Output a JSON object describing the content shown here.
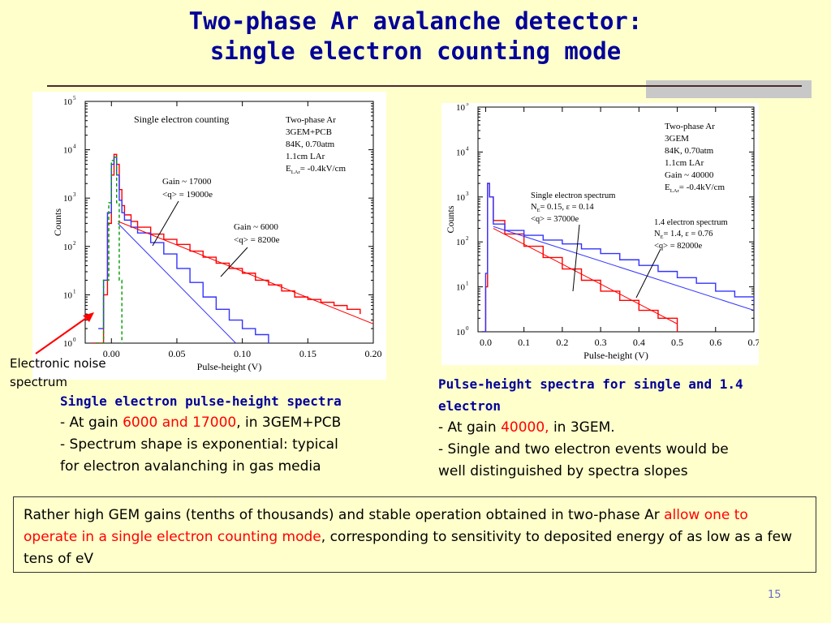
{
  "title": {
    "line1": "Two-phase Ar avalanche detector:",
    "line2": "single electron counting mode"
  },
  "noise_label": {
    "line1": "Electronic noise",
    "line2": "spectrum"
  },
  "caption_left": {
    "heading": "Single electron pulse-height spectra",
    "l1_pre": "- At gain ",
    "l1_red": "6000 and 17000",
    "l1_post": ", in 3GEM+PCB",
    "l2": "- Spectrum shape is exponential: typical",
    "l3": "for electron avalanching in gas media"
  },
  "caption_right": {
    "heading1": "Pulse-height spectra for single and 1.4",
    "heading2": "electron",
    "l1_pre": "- At gain ",
    "l1_red": "40000,",
    "l1_post": " in 3GEM.",
    "l2": "- Single and two electron events would be",
    "l3": "well distinguished by spectra slopes"
  },
  "summary": {
    "pre": "Rather high GEM gains (tenths of thousands) and stable operation obtained in two-phase Ar ",
    "red": "allow one to operate in a single electron counting mode",
    "post": ", corresponding to sensitivity to deposited energy of as low as a few tens of eV"
  },
  "page_number": "15",
  "colors": {
    "title": "#000099",
    "highlight": "#ff0000",
    "series_blue": "#3333ff",
    "series_red": "#ff0000",
    "noise": "#009900"
  },
  "chart_data": [
    {
      "type": "line",
      "y_scale": "log",
      "xlim": [
        -0.02,
        0.2
      ],
      "ylim": [
        1,
        100000
      ],
      "xlabel": "Pulse-height (V)",
      "ylabel": "Counts",
      "x_ticks": [
        "0.00",
        "0.05",
        "0.10",
        "0.15",
        "0.20"
      ],
      "x_tick_values": [
        0.0,
        0.05,
        0.1,
        0.15,
        0.2
      ],
      "y_ticks": [
        "10",
        "10",
        "10",
        "10",
        "10",
        "10"
      ],
      "y_tick_exponents": [
        "0",
        "1",
        "2",
        "3",
        "4",
        "5"
      ],
      "inner_title": "Single electron counting",
      "legend_text": [
        "Two-phase Ar",
        "3GEM+PCB",
        "84K, 0.70atm",
        "1.1cm LAr"
      ],
      "legend_field_pre": "E",
      "legend_field_sub": "LAr",
      "legend_field_post": "= -0.4kV/cm",
      "annotations": [
        {
          "line1": "Gain ~ 17000",
          "line2": "<q> = 19000e"
        },
        {
          "line1": "Gain ~ 6000",
          "line2": "<q> = 8200e"
        }
      ],
      "series": [
        {
          "color": "red",
          "x": [
            -0.015,
            -0.01,
            -0.006,
            -0.003,
            0.0,
            0.002,
            0.004,
            0.006,
            0.008,
            0.01,
            0.015,
            0.02,
            0.03,
            0.04,
            0.05,
            0.06,
            0.07,
            0.08,
            0.09,
            0.1,
            0.11,
            0.12,
            0.13,
            0.14,
            0.15,
            0.16,
            0.17,
            0.18,
            0.19
          ],
          "y": [
            0,
            1,
            10,
            300,
            3000,
            8000,
            5000,
            1500,
            700,
            450,
            330,
            250,
            180,
            140,
            110,
            80,
            60,
            45,
            35,
            28,
            20,
            16,
            12,
            9,
            8,
            7,
            6,
            5,
            4
          ]
        },
        {
          "color": "blue",
          "x": [
            -0.01,
            -0.006,
            -0.003,
            0.0,
            0.002,
            0.004,
            0.006,
            0.008,
            0.01,
            0.015,
            0.02,
            0.03,
            0.04,
            0.05,
            0.06,
            0.07,
            0.08,
            0.09,
            0.1,
            0.11,
            0.12
          ],
          "y": [
            2,
            20,
            500,
            5000,
            7000,
            3000,
            900,
            500,
            350,
            250,
            190,
            120,
            70,
            35,
            18,
            9,
            5,
            3,
            2,
            1.5,
            1
          ]
        },
        {
          "color": "red",
          "x": [
            0.005,
            0.2
          ],
          "y": [
            330,
            2.5
          ]
        },
        {
          "color": "blue",
          "x": [
            0.005,
            0.095
          ],
          "y": [
            300,
            1
          ]
        },
        {
          "color": "green",
          "x": [
            -0.012,
            -0.006,
            -0.002,
            0.0,
            0.002,
            0.004,
            0.006,
            0.008
          ],
          "y": [
            1,
            20,
            800,
            6000,
            7000,
            800,
            20,
            1
          ]
        }
      ]
    },
    {
      "type": "line",
      "y_scale": "log",
      "xlim": [
        -0.02,
        0.7
      ],
      "ylim": [
        1,
        100000
      ],
      "xlabel": "Pulse-height (V)",
      "ylabel": "Counts",
      "x_ticks": [
        "0.0",
        "0.1",
        "0.2",
        "0.3",
        "0.4",
        "0.5",
        "0.6",
        "0.7"
      ],
      "x_tick_values": [
        0.0,
        0.1,
        0.2,
        0.3,
        0.4,
        0.5,
        0.6,
        0.7
      ],
      "y_ticks": [
        "10",
        "10",
        "10",
        "10",
        "10",
        "10"
      ],
      "y_tick_exponents": [
        "0",
        "1",
        "2",
        "3",
        "4",
        "5"
      ],
      "legend_text": [
        "Two-phase Ar",
        "3GEM",
        "84K, 0.70atm",
        "1.1cm LAr",
        "Gain ~ 40000"
      ],
      "legend_field_pre": "E",
      "legend_field_sub": "LAr",
      "legend_field_post": "= -0.4kV/cm",
      "annotations": [
        {
          "line1": "Single electron spectrum",
          "pre": "N",
          "sub": "E",
          "post": "= 0.15, ε = 0.14",
          "line3": "<q> = 37000e"
        },
        {
          "line1": "1.4 electron spectrum",
          "pre": "N",
          "sub": "E",
          "post": "= 1.4, ε = 0.76",
          "line3": "<q> = 82000e"
        }
      ],
      "series": [
        {
          "color": "red",
          "x": [
            -0.01,
            0.0,
            0.005,
            0.01,
            0.02,
            0.05,
            0.1,
            0.15,
            0.2,
            0.25,
            0.3,
            0.35,
            0.4,
            0.45,
            0.5
          ],
          "y": [
            1,
            10,
            2000,
            1000,
            300,
            150,
            80,
            45,
            25,
            14,
            8,
            5,
            3,
            2,
            1
          ]
        },
        {
          "color": "blue",
          "x": [
            -0.01,
            0.0,
            0.005,
            0.01,
            0.02,
            0.05,
            0.1,
            0.15,
            0.2,
            0.25,
            0.3,
            0.35,
            0.4,
            0.45,
            0.5,
            0.55,
            0.6,
            0.65,
            0.7
          ],
          "y": [
            1,
            20,
            2000,
            1000,
            250,
            180,
            140,
            110,
            90,
            70,
            55,
            40,
            30,
            22,
            16,
            12,
            8,
            6,
            4
          ]
        },
        {
          "color": "red",
          "x": [
            0.02,
            0.5
          ],
          "y": [
            200,
            1.5
          ]
        },
        {
          "color": "blue",
          "x": [
            0.02,
            0.7
          ],
          "y": [
            220,
            3
          ]
        }
      ]
    }
  ]
}
